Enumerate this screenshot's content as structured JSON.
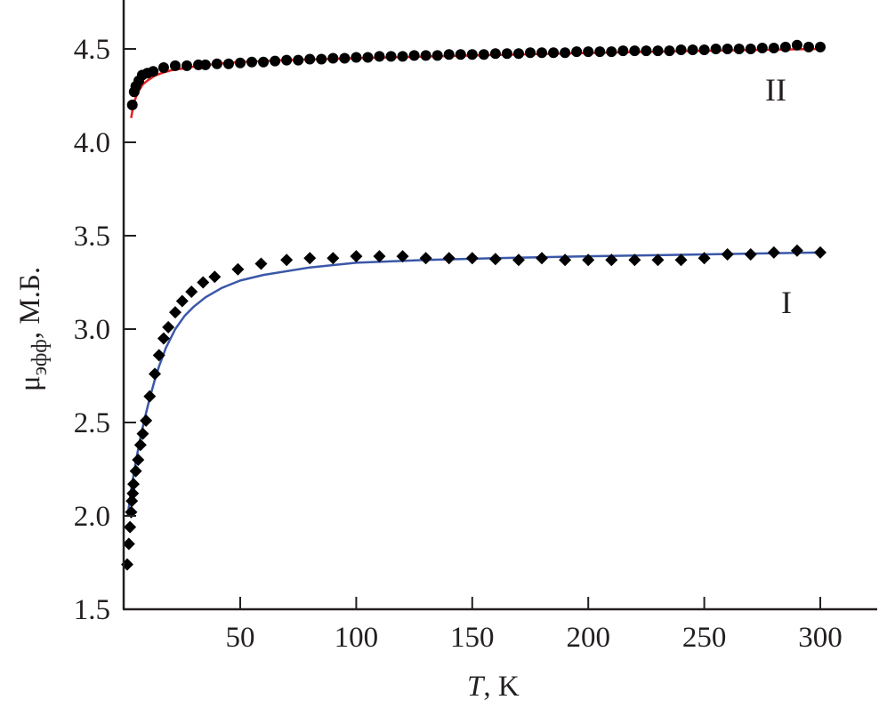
{
  "chart_data": {
    "type": "scatter",
    "xlabel_var": "T",
    "xlabel_unit": ", K",
    "ylabel_main": "μ",
    "ylabel_sub": "эфф",
    "ylabel_unit": ", М.Б.",
    "xlim": [
      0,
      325
    ],
    "ylim": [
      1.5,
      4.75
    ],
    "x_ticks": [
      50,
      100,
      150,
      200,
      250,
      300
    ],
    "x_tick_labels": [
      "50",
      "100",
      "150",
      "200",
      "250",
      "300"
    ],
    "y_ticks": [
      1.5,
      2.0,
      2.5,
      3.0,
      3.5,
      4.0,
      4.5
    ],
    "y_tick_labels": [
      "1.5",
      "2.0",
      "2.5",
      "3.0",
      "3.5",
      "4.0",
      "4.5"
    ],
    "grid": false,
    "colors": {
      "axis": "#231f20",
      "points": "#000000",
      "fit_I": "#3a57a8",
      "fit_II": "#e3211f"
    },
    "series": [
      {
        "name": "II",
        "marker": "circle",
        "x": [
          3.5,
          4.3,
          5,
          6.3,
          7.8,
          10,
          12.5,
          17,
          22,
          27,
          32,
          35,
          40,
          45,
          50,
          55,
          60,
          65,
          70,
          75,
          80,
          85,
          90,
          95,
          100,
          105,
          110,
          115,
          120,
          125,
          130,
          135,
          140,
          145,
          150,
          155,
          160,
          165,
          170,
          175,
          180,
          185,
          190,
          195,
          200,
          205,
          210,
          215,
          220,
          225,
          230,
          235,
          240,
          245,
          250,
          255,
          260,
          265,
          270,
          275,
          280,
          285,
          290,
          295,
          300
        ],
        "y": [
          4.2,
          4.27,
          4.3,
          4.33,
          4.36,
          4.37,
          4.38,
          4.4,
          4.41,
          4.41,
          4.415,
          4.415,
          4.42,
          4.42,
          4.425,
          4.43,
          4.43,
          4.435,
          4.44,
          4.44,
          4.445,
          4.445,
          4.45,
          4.45,
          4.455,
          4.455,
          4.46,
          4.46,
          4.46,
          4.465,
          4.465,
          4.465,
          4.47,
          4.47,
          4.47,
          4.47,
          4.475,
          4.475,
          4.475,
          4.48,
          4.48,
          4.48,
          4.48,
          4.485,
          4.485,
          4.485,
          4.485,
          4.49,
          4.49,
          4.49,
          4.49,
          4.49,
          4.495,
          4.495,
          4.495,
          4.5,
          4.5,
          4.5,
          4.5,
          4.505,
          4.505,
          4.51,
          4.52,
          4.51,
          4.51
        ]
      },
      {
        "name": "I",
        "marker": "diamond",
        "x": [
          1.3,
          2,
          2.5,
          3,
          3.3,
          3.7,
          4,
          5,
          6,
          7,
          8,
          9.4,
          11,
          13.2,
          15,
          17,
          19,
          22,
          25,
          29,
          34,
          39,
          49,
          59,
          70,
          80,
          90,
          100,
          110,
          120,
          130,
          140,
          150,
          160,
          170,
          180,
          190,
          200,
          210,
          220,
          230,
          240,
          250,
          260,
          270,
          280,
          290,
          300
        ],
        "y": [
          1.74,
          1.85,
          1.94,
          2.02,
          2.08,
          2.12,
          2.17,
          2.24,
          2.3,
          2.38,
          2.44,
          2.51,
          2.64,
          2.76,
          2.86,
          2.95,
          3.01,
          3.09,
          3.15,
          3.2,
          3.25,
          3.28,
          3.32,
          3.35,
          3.37,
          3.38,
          3.38,
          3.39,
          3.39,
          3.39,
          3.38,
          3.38,
          3.38,
          3.375,
          3.37,
          3.38,
          3.37,
          3.37,
          3.37,
          3.37,
          3.37,
          3.37,
          3.38,
          3.4,
          3.4,
          3.41,
          3.42,
          3.41
        ]
      }
    ],
    "fits": [
      {
        "name": "fit-II",
        "x": [
          3,
          4,
          5,
          6,
          8,
          10,
          13,
          16,
          20,
          25,
          30,
          40,
          50,
          70,
          100,
          150,
          200,
          250,
          300
        ],
        "y": [
          4.13,
          4.2,
          4.24,
          4.27,
          4.31,
          4.33,
          4.355,
          4.37,
          4.385,
          4.395,
          4.405,
          4.42,
          4.43,
          4.44,
          4.45,
          4.465,
          4.478,
          4.49,
          4.5
        ]
      },
      {
        "name": "fit-I",
        "x": [
          1.5,
          3,
          5,
          7,
          9,
          11,
          13,
          15,
          18,
          22,
          26,
          30,
          35,
          42,
          50,
          60,
          80,
          100,
          130,
          160,
          200,
          250,
          300
        ],
        "y": [
          2.0,
          2.14,
          2.29,
          2.42,
          2.53,
          2.63,
          2.72,
          2.8,
          2.9,
          3.0,
          3.07,
          3.12,
          3.17,
          3.22,
          3.26,
          3.29,
          3.33,
          3.355,
          3.37,
          3.38,
          3.39,
          3.4,
          3.41
        ]
      }
    ],
    "annotations": [
      {
        "text": "II",
        "x": 283,
        "y": 4.28
      },
      {
        "text": "I",
        "x": 286,
        "y": 3.14
      }
    ]
  }
}
